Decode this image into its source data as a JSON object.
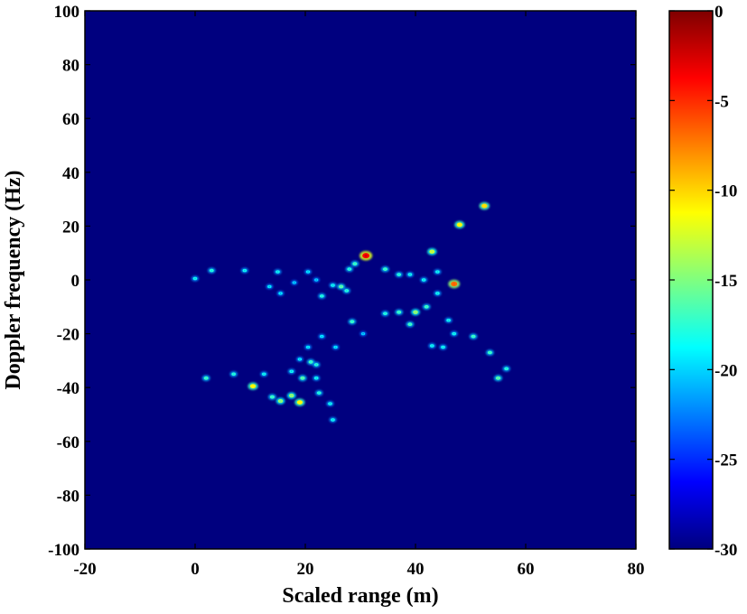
{
  "chart_data": {
    "type": "heatmap",
    "title": "",
    "xlabel": "Scaled range (m)",
    "ylabel": "Doppler frequency (Hz)",
    "xlim": [
      -20,
      80
    ],
    "ylim": [
      -100,
      100
    ],
    "x_ticks": [
      "-20",
      "0",
      "20",
      "40",
      "60",
      "80"
    ],
    "y_ticks": [
      "100",
      "80",
      "60",
      "40",
      "20",
      "0",
      "-20",
      "-40",
      "-60",
      "-80",
      "-100"
    ],
    "colorbar": {
      "range": [
        -30,
        0
      ],
      "colormap": "jet",
      "ticks": [
        "0",
        "-5",
        "-10",
        "-15",
        "-20",
        "-25",
        "-30"
      ]
    },
    "background_value": -30,
    "points": [
      {
        "x": 0,
        "y": 0.5,
        "v": -22
      },
      {
        "x": 3,
        "y": 3.5,
        "v": -21
      },
      {
        "x": 9,
        "y": 3.5,
        "v": -22
      },
      {
        "x": 15,
        "y": 3,
        "v": -22
      },
      {
        "x": 20.5,
        "y": 3,
        "v": -23
      },
      {
        "x": 13.5,
        "y": -2.5,
        "v": -23
      },
      {
        "x": 15.5,
        "y": -5,
        "v": -23
      },
      {
        "x": 18,
        "y": -1,
        "v": -24
      },
      {
        "x": 22,
        "y": 0,
        "v": -24
      },
      {
        "x": 25,
        "y": -2,
        "v": -22
      },
      {
        "x": 26.5,
        "y": -2.5,
        "v": -19
      },
      {
        "x": 27.5,
        "y": -4,
        "v": -21
      },
      {
        "x": 23,
        "y": -6,
        "v": -21
      },
      {
        "x": 28,
        "y": 4,
        "v": -21
      },
      {
        "x": 29,
        "y": 6,
        "v": -20
      },
      {
        "x": 31,
        "y": 9,
        "v": -4
      },
      {
        "x": 34.5,
        "y": 4,
        "v": -20
      },
      {
        "x": 37,
        "y": 2,
        "v": -21
      },
      {
        "x": 39,
        "y": 2,
        "v": -22
      },
      {
        "x": 43,
        "y": 10.5,
        "v": -15
      },
      {
        "x": 48,
        "y": 20.5,
        "v": -13
      },
      {
        "x": 52.5,
        "y": 27.5,
        "v": -12
      },
      {
        "x": 41.5,
        "y": 0,
        "v": -22
      },
      {
        "x": 44,
        "y": 3,
        "v": -22
      },
      {
        "x": 47,
        "y": -1.5,
        "v": -8
      },
      {
        "x": 44,
        "y": -5,
        "v": -22
      },
      {
        "x": 42,
        "y": -10,
        "v": -20
      },
      {
        "x": 40,
        "y": -12,
        "v": -17
      },
      {
        "x": 37,
        "y": -12,
        "v": -20
      },
      {
        "x": 34.5,
        "y": -12.5,
        "v": -21
      },
      {
        "x": 39,
        "y": -16.5,
        "v": -20
      },
      {
        "x": 46,
        "y": -15,
        "v": -22
      },
      {
        "x": 28.5,
        "y": -15.5,
        "v": -20
      },
      {
        "x": 30.5,
        "y": -20,
        "v": -24
      },
      {
        "x": 23,
        "y": -21,
        "v": -23
      },
      {
        "x": 25.5,
        "y": -25,
        "v": -23
      },
      {
        "x": 20.5,
        "y": -25,
        "v": -23
      },
      {
        "x": 43,
        "y": -24.5,
        "v": -22
      },
      {
        "x": 45,
        "y": -25,
        "v": -22
      },
      {
        "x": 47,
        "y": -20,
        "v": -22
      },
      {
        "x": 50.5,
        "y": -21,
        "v": -20
      },
      {
        "x": 53.5,
        "y": -27,
        "v": -20
      },
      {
        "x": 56.5,
        "y": -33,
        "v": -21
      },
      {
        "x": 55,
        "y": -36.5,
        "v": -19
      },
      {
        "x": 19,
        "y": -29.5,
        "v": -23
      },
      {
        "x": 21,
        "y": -30.5,
        "v": -20
      },
      {
        "x": 22,
        "y": -31.5,
        "v": -21
      },
      {
        "x": 17.5,
        "y": -34,
        "v": -22
      },
      {
        "x": 19.5,
        "y": -36.5,
        "v": -19
      },
      {
        "x": 22,
        "y": -36.5,
        "v": -22
      },
      {
        "x": 12.5,
        "y": -35,
        "v": -22
      },
      {
        "x": 7,
        "y": -35,
        "v": -21
      },
      {
        "x": 2,
        "y": -36.5,
        "v": -20
      },
      {
        "x": 10.5,
        "y": -39.5,
        "v": -13
      },
      {
        "x": 17.5,
        "y": -43,
        "v": -17
      },
      {
        "x": 14,
        "y": -43.5,
        "v": -20
      },
      {
        "x": 15.5,
        "y": -45,
        "v": -17
      },
      {
        "x": 19,
        "y": -45.5,
        "v": -13
      },
      {
        "x": 22.5,
        "y": -42,
        "v": -21
      },
      {
        "x": 24.5,
        "y": -46,
        "v": -22
      },
      {
        "x": 25,
        "y": -52,
        "v": -22
      }
    ]
  }
}
